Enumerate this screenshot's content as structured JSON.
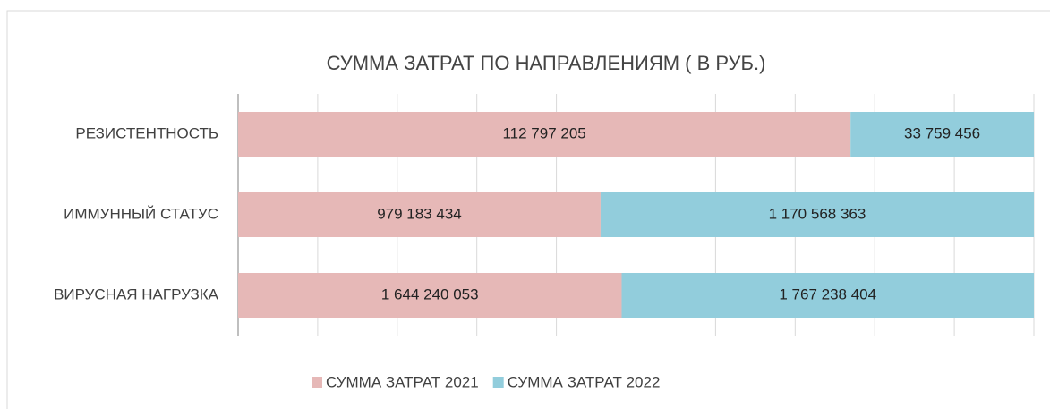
{
  "chart_data": {
    "type": "bar",
    "orientation": "horizontal",
    "stacking": "percent",
    "title": "СУММА ЗАТРАТ ПО НАПРАВЛЕНИЯМ ( В РУБ.)",
    "categories": [
      "РЕЗИСТЕНТНОСТЬ",
      "ИММУННЫЙ СТАТУС",
      "ВИРУСНАЯ НАГРУЗКА"
    ],
    "series": [
      {
        "name": "СУММА ЗАТРАТ 2021",
        "color": "#e6b8b7",
        "values": [
          112797205,
          979183434,
          1644240053
        ],
        "value_labels": [
          "112 797 205",
          "979 183 434",
          "1 644 240 053"
        ]
      },
      {
        "name": "СУММА ЗАТРАТ 2022",
        "color": "#92cddc",
        "values": [
          33759456,
          1170568363,
          1767238404
        ],
        "value_labels": [
          "33 759 456",
          "1 170 568 363",
          "1 767 238 404"
        ]
      }
    ],
    "xlim": [
      0,
      100
    ],
    "xticks": [
      0,
      10,
      20,
      30,
      40,
      50,
      60,
      70,
      80,
      90,
      100
    ],
    "grid": true,
    "legend": "bottom"
  }
}
